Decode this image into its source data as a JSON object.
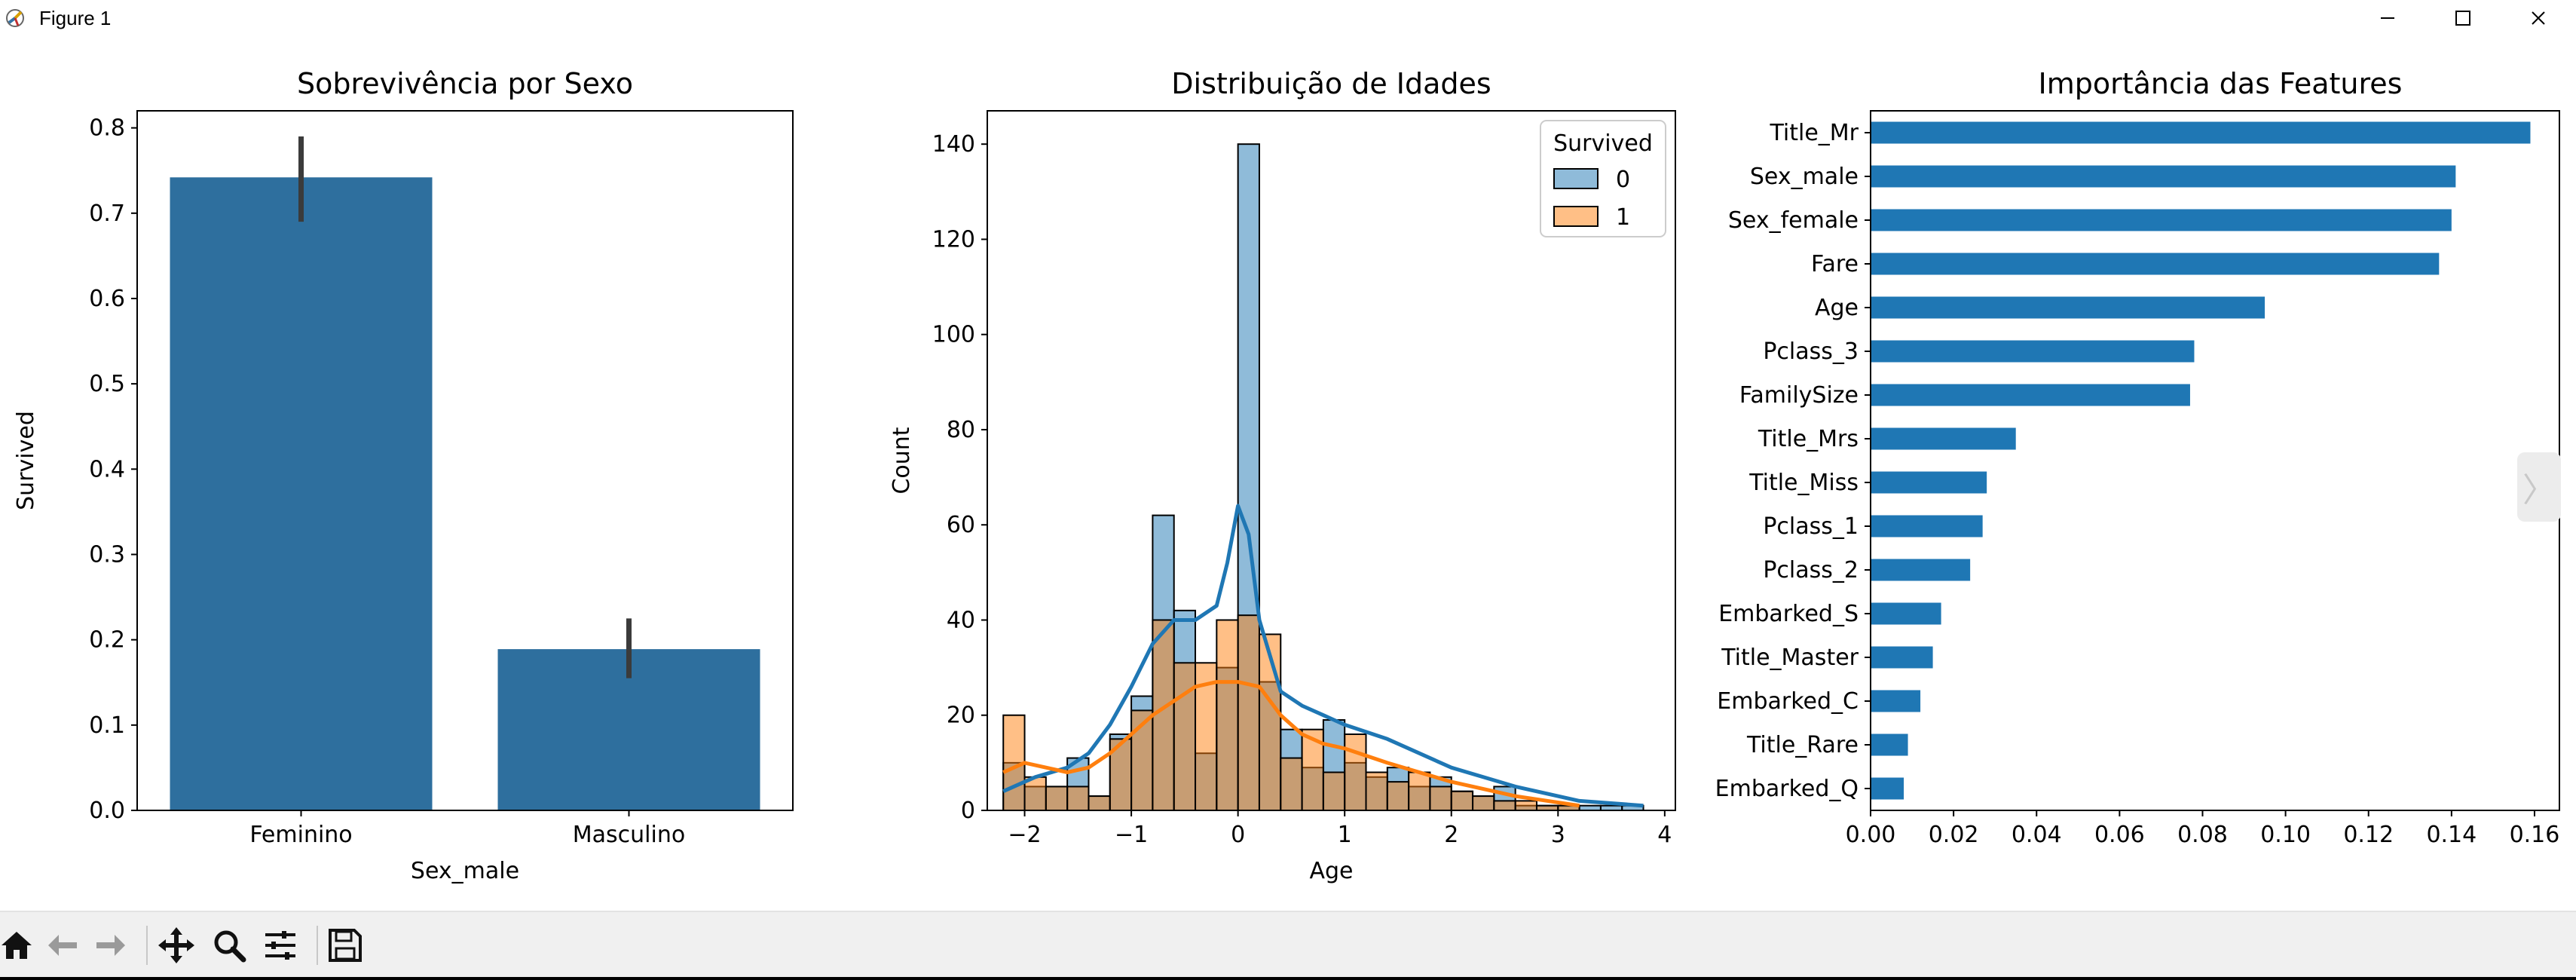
{
  "window": {
    "title": "Figure 1",
    "icons": {
      "app": "matplotlib-figure-icon",
      "minimize": "minimize-icon",
      "maximize": "maximize-icon",
      "close": "close-icon"
    }
  },
  "toolbar": {
    "buttons": [
      {
        "name": "home-icon",
        "tooltip": ""
      },
      {
        "name": "back-arrow-icon",
        "tooltip": ""
      },
      {
        "name": "forward-arrow-icon",
        "tooltip": ""
      },
      {
        "name": "pan-icon",
        "tooltip": ""
      },
      {
        "name": "zoom-icon",
        "tooltip": ""
      },
      {
        "name": "configure-subplots-icon",
        "tooltip": ""
      },
      {
        "name": "save-icon",
        "tooltip": ""
      }
    ]
  },
  "side_tab": {
    "glyph": "〉"
  },
  "colors": {
    "blue_bar": "#2e6f9e",
    "hist_blue": "#1f77b4",
    "hist_orange": "#ff7f0e",
    "errbar": "#3b3b3b"
  },
  "chart_data": [
    {
      "type": "bar",
      "title": "Sobrevivência por Sexo",
      "xlabel": "Sex_male",
      "ylabel": "Survived",
      "categories": [
        "Feminino",
        "Masculino"
      ],
      "values": [
        0.742,
        0.189
      ],
      "error": [
        [
          0.69,
          0.79
        ],
        [
          0.155,
          0.225
        ]
      ],
      "ylim": [
        0,
        0.82
      ],
      "yticks": [
        0.0,
        0.1,
        0.2,
        0.3,
        0.4,
        0.5,
        0.6,
        0.7,
        0.8
      ],
      "ytick_labels": [
        "0.0",
        "0.1",
        "0.2",
        "0.3",
        "0.4",
        "0.5",
        "0.6",
        "0.7",
        "0.8"
      ],
      "grid": false
    },
    {
      "type": "histogram",
      "title": "Distribuição de Idades",
      "xlabel": "Age",
      "ylabel": "Count",
      "xlim": [
        -2.35,
        4.1
      ],
      "ylim": [
        0,
        147
      ],
      "xticks": [
        -2,
        -1,
        0,
        1,
        2,
        3,
        4
      ],
      "xtick_labels": [
        "−2",
        "−1",
        "0",
        "1",
        "2",
        "3",
        "4"
      ],
      "yticks": [
        0,
        20,
        40,
        60,
        80,
        100,
        120,
        140
      ],
      "ytick_labels": [
        "0",
        "20",
        "40",
        "60",
        "80",
        "100",
        "120",
        "140"
      ],
      "bin_start": -2.2,
      "bin_width": 0.2,
      "legend": {
        "title": "Survived",
        "position": "top-right",
        "entries": [
          "0",
          "1"
        ]
      },
      "series": [
        {
          "name": "0",
          "counts": [
            10,
            5,
            5,
            11,
            3,
            16,
            24,
            62,
            42,
            12,
            30,
            140,
            27,
            17,
            9,
            19,
            10,
            7,
            9,
            5,
            7,
            4,
            3,
            5,
            1,
            1,
            1,
            1,
            1,
            1
          ]
        },
        {
          "name": "1",
          "counts": [
            20,
            7,
            5,
            5,
            3,
            15,
            21,
            40,
            31,
            31,
            40,
            41,
            37,
            11,
            17,
            8,
            16,
            8,
            6,
            8,
            5,
            4,
            3,
            2,
            2,
            1,
            1,
            0,
            0,
            0
          ]
        }
      ],
      "kde": [
        {
          "name": "0",
          "x": [
            -2.2,
            -1.9,
            -1.6,
            -1.4,
            -1.2,
            -1.0,
            -0.8,
            -0.6,
            -0.4,
            -0.2,
            -0.1,
            0.0,
            0.1,
            0.2,
            0.4,
            0.6,
            0.8,
            1.0,
            1.4,
            2.0,
            2.6,
            3.2,
            3.8
          ],
          "y": [
            4,
            7,
            9,
            12,
            18,
            26,
            35,
            40,
            40,
            43,
            52,
            64,
            58,
            40,
            25,
            22,
            20,
            18,
            15,
            9,
            5,
            2,
            1
          ]
        },
        {
          "name": "1",
          "x": [
            -2.2,
            -2.0,
            -1.8,
            -1.6,
            -1.4,
            -1.2,
            -1.0,
            -0.8,
            -0.6,
            -0.4,
            -0.2,
            0.0,
            0.2,
            0.4,
            0.6,
            0.8,
            1.0,
            1.4,
            2.0,
            2.6,
            3.2
          ],
          "y": [
            8,
            10,
            9,
            8,
            9,
            12,
            16,
            20,
            23,
            26,
            27,
            27,
            26,
            20,
            16,
            14,
            13,
            10,
            6,
            3,
            1
          ]
        }
      ]
    },
    {
      "type": "barh",
      "title": "Importância das Features",
      "categories": [
        "Title_Mr",
        "Sex_male",
        "Sex_female",
        "Fare",
        "Age",
        "Pclass_3",
        "FamilySize",
        "Title_Mrs",
        "Title_Miss",
        "Pclass_1",
        "Pclass_2",
        "Embarked_S",
        "Title_Master",
        "Embarked_C",
        "Title_Rare",
        "Embarked_Q"
      ],
      "values": [
        0.159,
        0.141,
        0.14,
        0.137,
        0.095,
        0.078,
        0.077,
        0.035,
        0.028,
        0.027,
        0.024,
        0.017,
        0.015,
        0.012,
        0.009,
        0.008
      ],
      "xlim": [
        0,
        0.166
      ],
      "xticks": [
        0.0,
        0.02,
        0.04,
        0.06,
        0.08,
        0.1,
        0.12,
        0.14,
        0.16
      ],
      "xtick_labels": [
        "0.00",
        "0.02",
        "0.04",
        "0.06",
        "0.08",
        "0.10",
        "0.12",
        "0.14",
        "0.16"
      ],
      "grid": false
    }
  ]
}
